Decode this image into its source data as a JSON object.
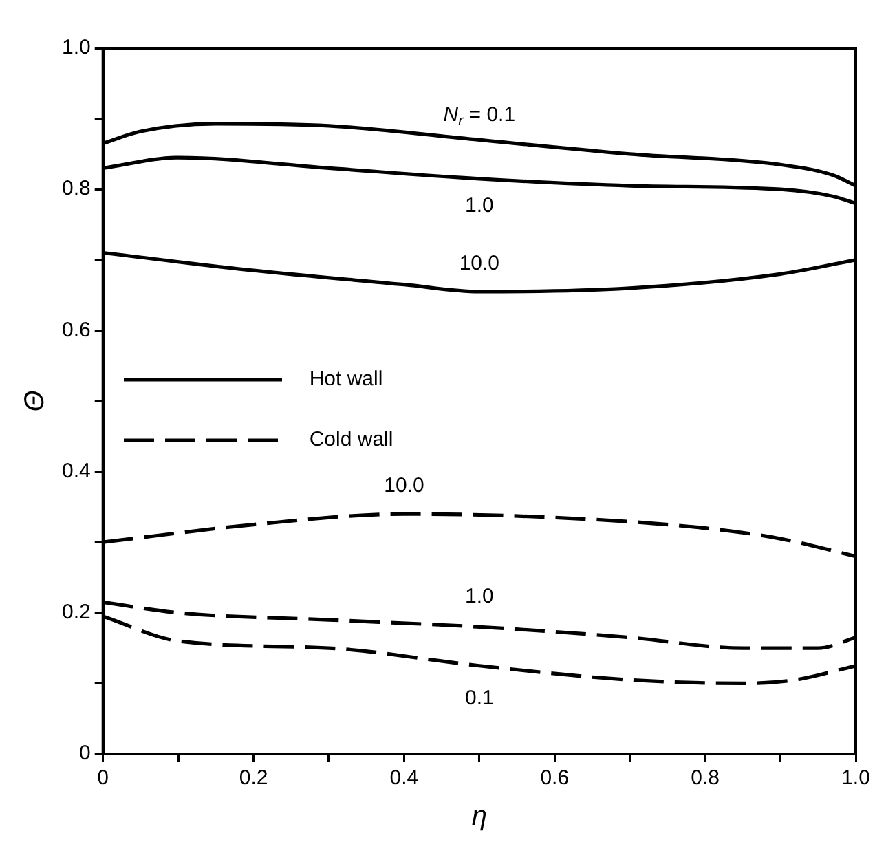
{
  "chart_data": {
    "type": "line",
    "xlabel": "η",
    "ylabel": "Θ",
    "xlim": [
      0,
      1
    ],
    "ylim": [
      0,
      1
    ],
    "xticks": [
      {
        "value": 0,
        "label": "0"
      },
      {
        "value": 0.1,
        "label": null
      },
      0.2,
      {
        "value": 0.3,
        "label": null
      },
      0.4,
      {
        "value": 0.5,
        "label": null
      },
      0.6,
      {
        "value": 0.7,
        "label": null
      },
      0.8,
      {
        "value": 0.9,
        "label": null
      },
      {
        "value": 1,
        "label": "1.0"
      }
    ],
    "yticks": [
      {
        "value": 0,
        "label": "0"
      },
      {
        "value": 0.1,
        "label": null
      },
      0.2,
      {
        "value": 0.3,
        "label": null
      },
      0.4,
      {
        "value": 0.5,
        "label": null
      },
      0.6,
      {
        "value": 0.7,
        "label": null
      },
      0.8,
      {
        "value": 0.9,
        "label": null
      },
      {
        "value": 1,
        "label": "1.0"
      }
    ],
    "grid": false,
    "marker": "none",
    "series": [
      {
        "name": "N$_{r}$ = 0.1",
        "color": "#000000",
        "line_style": "solid",
        "x": [
          0,
          0.05,
          0.15,
          0.3,
          0.5,
          0.7,
          0.9,
          0.97,
          1
        ],
        "values": [
          0.865,
          0.882,
          0.893,
          0.89,
          0.87,
          0.85,
          0.835,
          0.82,
          0.805
        ]
      },
      {
        "name": "1.0",
        "color": "#000000",
        "line_style": "solid",
        "x": [
          0,
          0.1,
          0.3,
          0.5,
          0.7,
          0.9,
          0.97,
          1
        ],
        "values": [
          0.83,
          0.845,
          0.83,
          0.815,
          0.805,
          0.8,
          0.79,
          0.78
        ]
      },
      {
        "name": "10.0",
        "color": "#000000",
        "line_style": "solid",
        "x": [
          0,
          0.2,
          0.4,
          0.5,
          0.7,
          0.9,
          1
        ],
        "values": [
          0.71,
          0.685,
          0.665,
          0.655,
          0.66,
          0.68,
          0.7
        ]
      },
      {
        "name": "10.0",
        "color": "#000000",
        "line_style": "dashed",
        "x": [
          0,
          0.2,
          0.4,
          0.6,
          0.8,
          0.9,
          1
        ],
        "values": [
          0.3,
          0.325,
          0.34,
          0.335,
          0.32,
          0.305,
          0.28
        ]
      },
      {
        "name": "1.0",
        "color": "#000000",
        "line_style": "dashed",
        "x": [
          0,
          0.1,
          0.3,
          0.5,
          0.7,
          0.85,
          0.95,
          1
        ],
        "values": [
          0.215,
          0.2,
          0.19,
          0.18,
          0.165,
          0.15,
          0.15,
          0.165
        ]
      },
      {
        "name": "0.1",
        "color": "#000000",
        "line_style": "dashed",
        "x": [
          0,
          0.1,
          0.3,
          0.5,
          0.7,
          0.85,
          0.92,
          1
        ],
        "values": [
          0.195,
          0.16,
          0.15,
          0.125,
          0.105,
          0.1,
          0.105,
          0.125
        ]
      }
    ],
    "annotations": [
      "Hot wall",
      "Cold wall"
    ]
  }
}
